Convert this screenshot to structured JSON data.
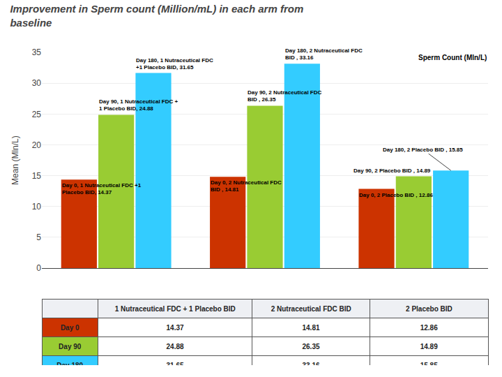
{
  "chart_data": {
    "type": "bar",
    "title": "Improvement in Sperm count (Million/mL) in each arm from\nbaseline",
    "ylabel": "Mean (Mln/L)",
    "categories": [
      "1 Nutraceutical FDC + 1 Placebo BID",
      "2 Nutraceutical FDC BID",
      "2 Placebo BID"
    ],
    "series": [
      {
        "name": "Day 0",
        "color": "#cc3300",
        "values": [
          14.37,
          14.81,
          12.86
        ]
      },
      {
        "name": "Day 90",
        "color": "#99cc33",
        "values": [
          24.88,
          26.35,
          14.89
        ]
      },
      {
        "name": "Day 180",
        "color": "#33ccff",
        "values": [
          31.65,
          33.16,
          15.85
        ]
      }
    ],
    "ylim": [
      0,
      35
    ],
    "yticks": [
      0,
      5,
      10,
      15,
      20,
      25,
      30,
      35
    ],
    "grid": true,
    "tick_labels": "y",
    "annotations": [
      {
        "text": "Sperm Count (Mln/L)"
      },
      {
        "text": "Day 0, 1 Nutraceutical FDC +1\nPlacebo BID, 14.37",
        "category": "1 Nutraceutical FDC + 1 Placebo BID",
        "series": "Day 0"
      },
      {
        "text": "Day 90, 1 Nutraceutical FDC +\n1 Placebo BID, 24.88",
        "category": "1 Nutraceutical FDC + 1 Placebo BID",
        "series": "Day 90"
      },
      {
        "text": "Day 180, 1 Nutraceutical FDC\n+1 Placebo BID, 31.65",
        "category": "1 Nutraceutical FDC + 1 Placebo BID",
        "series": "Day 180"
      },
      {
        "text": "Day 0, 2 Nutraceutical FDC\nBID , 14.81",
        "category": "2 Nutraceutical FDC BID",
        "series": "Day 0"
      },
      {
        "text": "Day 90, 2 Nutraceutical FDC\nBID , 26.35",
        "category": "2 Nutraceutical FDC BID",
        "series": "Day 90"
      },
      {
        "text": "Day 180, 2 Nutraceutical FDC\nBID , 33.16",
        "category": "2 Nutraceutical FDC BID",
        "series": "Day 180"
      },
      {
        "text": "Day 0, 2 Placebo BID , 12.86",
        "category": "2 Placebo BID",
        "series": "Day 0"
      },
      {
        "text": "Day 90, 2 Placebo BID , 14.89",
        "category": "2 Placebo BID",
        "series": "Day 90"
      },
      {
        "text": "Day 180, 2 Placebo BID , 15.85",
        "category": "2 Placebo BID",
        "series": "Day 180"
      }
    ]
  }
}
